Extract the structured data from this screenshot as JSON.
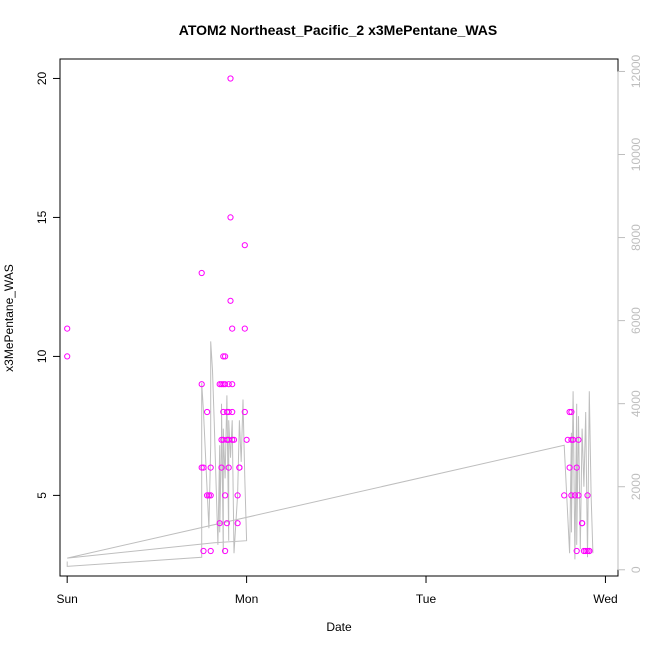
{
  "chart_data": {
    "type": "scatter",
    "title": "ATOM2 Northeast_Pacific_2 x3MePentane_WAS",
    "xlabel": "Date",
    "ylabel": "x3MePentane_WAS",
    "x_ticks": [
      "Sun",
      "Mon",
      "Tue",
      "Wed"
    ],
    "xlim_days": [
      -0.04,
      3.07
    ],
    "ylim": [
      2.1,
      20.7
    ],
    "y_ticks": [
      5,
      10,
      15,
      20
    ],
    "y2lim": [
      -150,
      12300
    ],
    "y2_ticks": [
      0,
      2000,
      4000,
      6000,
      8000,
      10000,
      12000
    ],
    "grid": false,
    "colors": {
      "points": "#ff00ff",
      "line": "#bebebe"
    },
    "series": [
      {
        "type": "points",
        "x_days": [
          0.0,
          0.0,
          0.75,
          0.75,
          0.75,
          0.76,
          0.76,
          0.78,
          0.78,
          0.79,
          0.8,
          0.8,
          0.8,
          0.85,
          0.85,
          0.86,
          0.86,
          0.86,
          0.87,
          0.87,
          0.87,
          0.87,
          0.88,
          0.88,
          0.88,
          0.88,
          0.89,
          0.89,
          0.89,
          0.9,
          0.9,
          0.9,
          0.9,
          0.91,
          0.91,
          0.91,
          0.92,
          0.92,
          0.92,
          0.92,
          0.93,
          0.95,
          0.95,
          0.96,
          0.96,
          0.99,
          0.99,
          0.99,
          1.0,
          2.77,
          2.79,
          2.8,
          2.8,
          2.81,
          2.81,
          2.81,
          2.82,
          2.83,
          2.84,
          2.84,
          2.85,
          2.85,
          2.87,
          2.87,
          2.88,
          2.89,
          2.9,
          2.9,
          2.91,
          2.91
        ],
        "y": [
          11,
          10,
          13,
          9,
          6,
          6,
          3,
          5,
          8,
          5,
          6,
          5,
          3,
          4,
          9,
          6,
          7,
          9,
          9,
          10,
          8,
          7,
          10,
          9,
          3,
          5,
          8,
          7,
          4,
          6,
          7,
          8,
          9,
          20,
          15,
          12,
          11,
          9,
          8,
          7,
          7,
          4,
          5,
          6,
          6,
          14,
          11,
          8,
          7,
          5,
          7,
          6,
          8,
          8,
          7,
          5,
          7,
          5,
          3,
          6,
          5,
          7,
          4,
          4,
          3,
          3,
          3,
          5,
          3,
          3
        ]
      },
      {
        "type": "line",
        "axis": "right",
        "x_days": [
          0.0,
          0.0,
          0.75,
          0.75,
          0.76,
          0.79,
          0.8,
          0.8,
          0.81,
          0.82,
          0.84,
          0.85,
          0.85,
          0.86,
          0.86,
          0.87,
          0.87,
          0.88,
          0.89,
          0.9,
          0.9,
          0.91,
          0.92,
          0.93,
          0.95,
          0.96,
          0.97,
          0.98,
          0.99,
          1.0,
          0.82,
          0.0,
          2.77,
          2.8,
          2.81,
          2.81,
          2.82,
          2.83,
          2.84,
          2.84,
          2.85,
          2.86,
          2.87,
          2.88,
          2.89,
          2.9,
          2.91,
          2.92,
          2.93
        ],
        "y": [
          200,
          80,
          300,
          4500,
          3800,
          1000,
          3000,
          5500,
          4800,
          3500,
          600,
          3000,
          900,
          3200,
          4000,
          400,
          3400,
          2200,
          4200,
          700,
          3600,
          2700,
          3600,
          400,
          1800,
          3600,
          2600,
          4100,
          2200,
          700,
          650,
          280,
          3000,
          400,
          3300,
          900,
          4300,
          250,
          4000,
          600,
          3700,
          500,
          3400,
          2000,
          3800,
          300,
          4300,
          1800,
          400
        ]
      }
    ]
  }
}
